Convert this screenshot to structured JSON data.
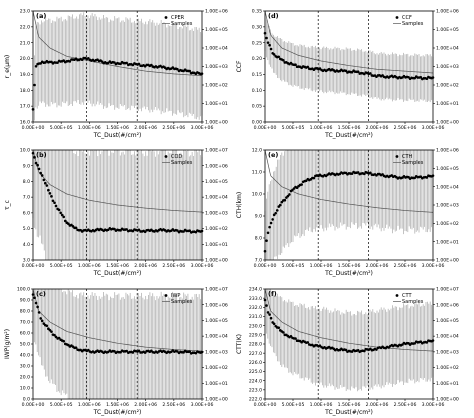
{
  "chart_data": [
    {
      "type": "line",
      "panel_label": "(a)",
      "ylabel": "r_e(μm)",
      "xlabel": "TC_Dust(#/cm²)",
      "ylim": [
        16.0,
        23.0
      ],
      "yticks": [
        "16.0",
        "17.0",
        "18.0",
        "19.0",
        "20.0",
        "21.0",
        "22.0",
        "23.0"
      ],
      "y2ticks": [
        "1.00E+00",
        "1.00E+01",
        "1.00E+02",
        "1.00E+03",
        "1.00E+04",
        "1.00E+05",
        "1.00E+06"
      ],
      "y2_log_range": [
        0,
        6
      ],
      "xlim": [
        0,
        3000000
      ],
      "xticks": [
        "0.00E+00",
        "5.00E+05",
        "1.00E+06",
        "1.50E+06",
        "2.00E+06",
        "2.50E+06",
        "3.00E+06"
      ],
      "vlines": [
        950000,
        1850000
      ],
      "legend": [
        "CPER",
        "Samples"
      ],
      "legend_position": "top-right",
      "mean": [
        [
          0,
          16.8
        ],
        [
          50000,
          19.5
        ],
        [
          150000,
          19.8
        ],
        [
          300000,
          19.75
        ],
        [
          500000,
          19.8
        ],
        [
          700000,
          19.9
        ],
        [
          900000,
          20.0
        ],
        [
          1100000,
          19.9
        ],
        [
          1300000,
          19.75
        ],
        [
          1600000,
          19.7
        ],
        [
          1900000,
          19.6
        ],
        [
          2200000,
          19.5
        ],
        [
          2500000,
          19.35
        ],
        [
          2750000,
          19.2
        ],
        [
          3000000,
          19.0
        ]
      ],
      "stdev": [
        [
          0,
          1.4
        ],
        [
          50000,
          2.8
        ],
        [
          300000,
          2.9
        ],
        [
          1000000,
          3.0
        ],
        [
          2000000,
          3.0
        ],
        [
          3000000,
          3.0
        ]
      ],
      "samples_log": [
        [
          0,
          6.0
        ],
        [
          100000,
          4.6
        ],
        [
          300000,
          4.0
        ],
        [
          600000,
          3.55
        ],
        [
          1000000,
          3.3
        ],
        [
          1500000,
          3.0
        ],
        [
          2000000,
          2.75
        ],
        [
          2500000,
          2.6
        ],
        [
          3000000,
          2.5
        ]
      ]
    },
    {
      "type": "line",
      "panel_label": "(d)",
      "ylabel": "CCF",
      "xlabel": "TC_Dust(#/cm²)",
      "ylim": [
        0.0,
        0.35
      ],
      "yticks": [
        "0.00",
        "0.05",
        "0.10",
        "0.15",
        "0.20",
        "0.25",
        "0.30",
        "0.35"
      ],
      "y2ticks": [
        "1.00E+00",
        "1.00E+01",
        "1.00E+02",
        "1.00E+03",
        "1.00E+04",
        "1.00E+05",
        "1.00E+06"
      ],
      "y2_log_range": [
        0,
        6
      ],
      "xlim": [
        0,
        3000000
      ],
      "xticks": [
        "0.00E+00",
        "5.00E+05",
        "1.00E+06",
        "1.50E+06",
        "2.00E+06",
        "2.50E+06",
        "3.00E+06"
      ],
      "vlines": [
        950000,
        1850000
      ],
      "legend": [
        "CCF",
        "Samples"
      ],
      "legend_position": "top-right",
      "mean": [
        [
          0,
          0.28
        ],
        [
          30000,
          0.26
        ],
        [
          80000,
          0.24
        ],
        [
          150000,
          0.215
        ],
        [
          300000,
          0.195
        ],
        [
          500000,
          0.18
        ],
        [
          700000,
          0.172
        ],
        [
          1000000,
          0.165
        ],
        [
          1300000,
          0.162
        ],
        [
          1600000,
          0.158
        ],
        [
          1850000,
          0.152
        ],
        [
          2000000,
          0.145
        ],
        [
          2300000,
          0.142
        ],
        [
          2600000,
          0.14
        ],
        [
          3000000,
          0.138
        ]
      ],
      "stdev": [
        [
          0,
          0.06
        ],
        [
          300000,
          0.07
        ],
        [
          1000000,
          0.075
        ],
        [
          2000000,
          0.078
        ],
        [
          3000000,
          0.078
        ]
      ],
      "samples_log": [
        [
          0,
          6.0
        ],
        [
          100000,
          4.7
        ],
        [
          300000,
          4.0
        ],
        [
          600000,
          3.6
        ],
        [
          1000000,
          3.3
        ],
        [
          1500000,
          3.05
        ],
        [
          2000000,
          2.85
        ],
        [
          2500000,
          2.75
        ],
        [
          3000000,
          2.65
        ]
      ]
    },
    {
      "type": "line",
      "panel_label": "(b)",
      "ylabel": "τ_c",
      "xlabel": "TC_Dust(#/cm²)",
      "ylim": [
        3.0,
        10.0
      ],
      "yticks": [
        "3.0",
        "4.0",
        "5.0",
        "6.0",
        "7.0",
        "8.0",
        "9.0",
        "10.0"
      ],
      "y2ticks": [
        "1.00E+00",
        "1.00E+01",
        "1.00E+02",
        "1.00E+03",
        "1.00E+04",
        "1.00E+05",
        "1.00E+06",
        "1.00E+07"
      ],
      "y2_log_range": [
        0,
        7
      ],
      "xlim": [
        0,
        3000000
      ],
      "xticks": [
        "0.00E+00",
        "5.00E+05",
        "1.00E+06",
        "1.50E+06",
        "2.00E+06",
        "2.50E+06",
        "3.00E+06"
      ],
      "vlines": [
        950000,
        1850000
      ],
      "legend": [
        "COD",
        "Samples"
      ],
      "legend_position": "top-right",
      "mean": [
        [
          0,
          9.8
        ],
        [
          50000,
          9.2
        ],
        [
          150000,
          8.5
        ],
        [
          300000,
          7.2
        ],
        [
          450000,
          6.2
        ],
        [
          600000,
          5.4
        ],
        [
          750000,
          5.0
        ],
        [
          900000,
          4.85
        ],
        [
          1100000,
          4.9
        ],
        [
          1400000,
          4.95
        ],
        [
          1700000,
          4.9
        ],
        [
          2000000,
          4.85
        ],
        [
          2300000,
          4.9
        ],
        [
          2600000,
          4.85
        ],
        [
          3000000,
          4.8
        ]
      ],
      "stdev": [
        [
          0,
          4.5
        ],
        [
          300000,
          5.2
        ],
        [
          1000000,
          5.5
        ],
        [
          2000000,
          5.5
        ],
        [
          3000000,
          5.5
        ]
      ],
      "samples_log": [
        [
          0,
          7.0
        ],
        [
          100000,
          5.6
        ],
        [
          300000,
          4.8
        ],
        [
          600000,
          4.2
        ],
        [
          1000000,
          3.8
        ],
        [
          1500000,
          3.5
        ],
        [
          2000000,
          3.3
        ],
        [
          2500000,
          3.15
        ],
        [
          3000000,
          3.05
        ]
      ]
    },
    {
      "type": "line",
      "panel_label": "(e)",
      "ylabel": "CTH(km)",
      "xlabel": "TC_Dust(#/cm²)",
      "ylim": [
        7.0,
        12.0
      ],
      "yticks": [
        "7.0",
        "8.0",
        "9.0",
        "10.0",
        "11.0",
        "12.0"
      ],
      "y2ticks": [
        "1.00E+00",
        "1.00E+01",
        "1.00E+02",
        "1.00E+03",
        "1.00E+04",
        "1.00E+05",
        "1.00E+06"
      ],
      "y2_log_range": [
        0,
        6
      ],
      "xlim": [
        0,
        3000000
      ],
      "xticks": [
        "0.00E+00",
        "5.00E+05",
        "1.00E+06",
        "1.50E+06",
        "2.00E+06",
        "2.50E+06",
        "3.00E+06"
      ],
      "vlines": [
        950000,
        1850000
      ],
      "legend": [
        "CTH",
        "Samples"
      ],
      "legend_position": "top-right",
      "mean": [
        [
          0,
          7.4
        ],
        [
          50000,
          8.2
        ],
        [
          150000,
          9.0
        ],
        [
          300000,
          9.6
        ],
        [
          500000,
          10.2
        ],
        [
          700000,
          10.55
        ],
        [
          900000,
          10.8
        ],
        [
          1200000,
          10.9
        ],
        [
          1500000,
          10.95
        ],
        [
          1800000,
          10.95
        ],
        [
          2100000,
          10.85
        ],
        [
          2400000,
          10.75
        ],
        [
          2700000,
          10.75
        ],
        [
          3000000,
          10.8
        ]
      ],
      "stdev": [
        [
          0,
          2.0
        ],
        [
          300000,
          2.4
        ],
        [
          1000000,
          2.6
        ],
        [
          2000000,
          2.6
        ],
        [
          3000000,
          2.6
        ]
      ],
      "samples_log": [
        [
          0,
          6.0
        ],
        [
          100000,
          4.6
        ],
        [
          300000,
          4.0
        ],
        [
          600000,
          3.6
        ],
        [
          1000000,
          3.3
        ],
        [
          1500000,
          3.05
        ],
        [
          2000000,
          2.85
        ],
        [
          2500000,
          2.7
        ],
        [
          3000000,
          2.6
        ]
      ]
    },
    {
      "type": "line",
      "panel_label": "(c)",
      "ylabel": "IWP(g/m²)",
      "xlabel": "TC_Dust(#/cm²)",
      "ylim": [
        0.0,
        100.0
      ],
      "yticks": [
        "0.0",
        "10.0",
        "20.0",
        "30.0",
        "40.0",
        "50.0",
        "60.0",
        "70.0",
        "80.0",
        "90.0",
        "100.0"
      ],
      "y2ticks": [
        "1.00E+00",
        "1.00E+01",
        "1.00E+02",
        "1.00E+03",
        "1.00E+04",
        "1.00E+05",
        "1.00E+06",
        "1.00E+07"
      ],
      "y2_log_range": [
        0,
        7
      ],
      "xlim": [
        0,
        3000000
      ],
      "xticks": [
        "0.00E+00",
        "5.00E+05",
        "1.00E+06",
        "1.50E+06",
        "2.00E+06",
        "2.50E+06",
        "3.00E+06"
      ],
      "vlines": [
        950000,
        1850000
      ],
      "legend": [
        "IWP",
        "Samples"
      ],
      "legend_position": "top-right",
      "mean": [
        [
          0,
          95
        ],
        [
          50000,
          88
        ],
        [
          150000,
          72
        ],
        [
          300000,
          62
        ],
        [
          450000,
          55
        ],
        [
          600000,
          50
        ],
        [
          750000,
          46
        ],
        [
          900000,
          44
        ],
        [
          1100000,
          43
        ],
        [
          1400000,
          43
        ],
        [
          1700000,
          43
        ],
        [
          2000000,
          43
        ],
        [
          2300000,
          43
        ],
        [
          2600000,
          43
        ],
        [
          3000000,
          42
        ]
      ],
      "stdev": [
        [
          0,
          40
        ],
        [
          300000,
          50
        ],
        [
          1000000,
          55
        ],
        [
          2000000,
          55
        ],
        [
          3000000,
          55
        ]
      ],
      "samples_log": [
        [
          0,
          7.0
        ],
        [
          100000,
          5.6
        ],
        [
          300000,
          4.9
        ],
        [
          600000,
          4.3
        ],
        [
          1000000,
          3.9
        ],
        [
          1500000,
          3.55
        ],
        [
          2000000,
          3.3
        ],
        [
          2500000,
          3.15
        ],
        [
          3000000,
          3.05
        ]
      ]
    },
    {
      "type": "line",
      "panel_label": "(f)",
      "ylabel": "CTT(K)",
      "xlabel": "TC_Dust(#/cm²)",
      "ylim": [
        222.0,
        234.0
      ],
      "yticks": [
        "222.0",
        "223.0",
        "224.0",
        "225.0",
        "226.0",
        "227.0",
        "228.0",
        "229.0",
        "230.0",
        "231.0",
        "232.0",
        "233.0",
        "234.0"
      ],
      "y2ticks": [
        "1.00E+00",
        "1.00E+01",
        "1.00E+02",
        "1.00E+03",
        "1.00E+04",
        "1.00E+05",
        "1.00E+06",
        "1.00E+07"
      ],
      "y2_log_range": [
        0,
        7
      ],
      "xlim": [
        0,
        3000000
      ],
      "xticks": [
        "0.00E+00",
        "5.00E+05",
        "1.00E+06",
        "1.50E+06",
        "2.00E+06",
        "2.50E+06",
        "3.00E+06"
      ],
      "vlines": [
        950000,
        1850000
      ],
      "legend": [
        "CTT",
        "Samples"
      ],
      "legend_position": "top-right",
      "mean": [
        [
          0,
          232.8
        ],
        [
          50000,
          231.5
        ],
        [
          150000,
          230.3
        ],
        [
          300000,
          229.3
        ],
        [
          500000,
          228.6
        ],
        [
          700000,
          228.2
        ],
        [
          900000,
          227.8
        ],
        [
          1100000,
          227.6
        ],
        [
          1300000,
          227.4
        ],
        [
          1600000,
          227.2
        ],
        [
          1900000,
          227.4
        ],
        [
          2200000,
          227.7
        ],
        [
          2500000,
          228.0
        ],
        [
          2800000,
          228.2
        ],
        [
          3000000,
          228.3
        ]
      ],
      "stdev": [
        [
          0,
          3.0
        ],
        [
          300000,
          4.0
        ],
        [
          1000000,
          4.5
        ],
        [
          2000000,
          4.5
        ],
        [
          3000000,
          4.5
        ]
      ],
      "samples_log": [
        [
          0,
          7.0
        ],
        [
          100000,
          5.6
        ],
        [
          300000,
          4.9
        ],
        [
          600000,
          4.3
        ],
        [
          1000000,
          3.9
        ],
        [
          1500000,
          3.55
        ],
        [
          2000000,
          3.3
        ],
        [
          2500000,
          3.15
        ],
        [
          3000000,
          3.05
        ]
      ]
    }
  ]
}
